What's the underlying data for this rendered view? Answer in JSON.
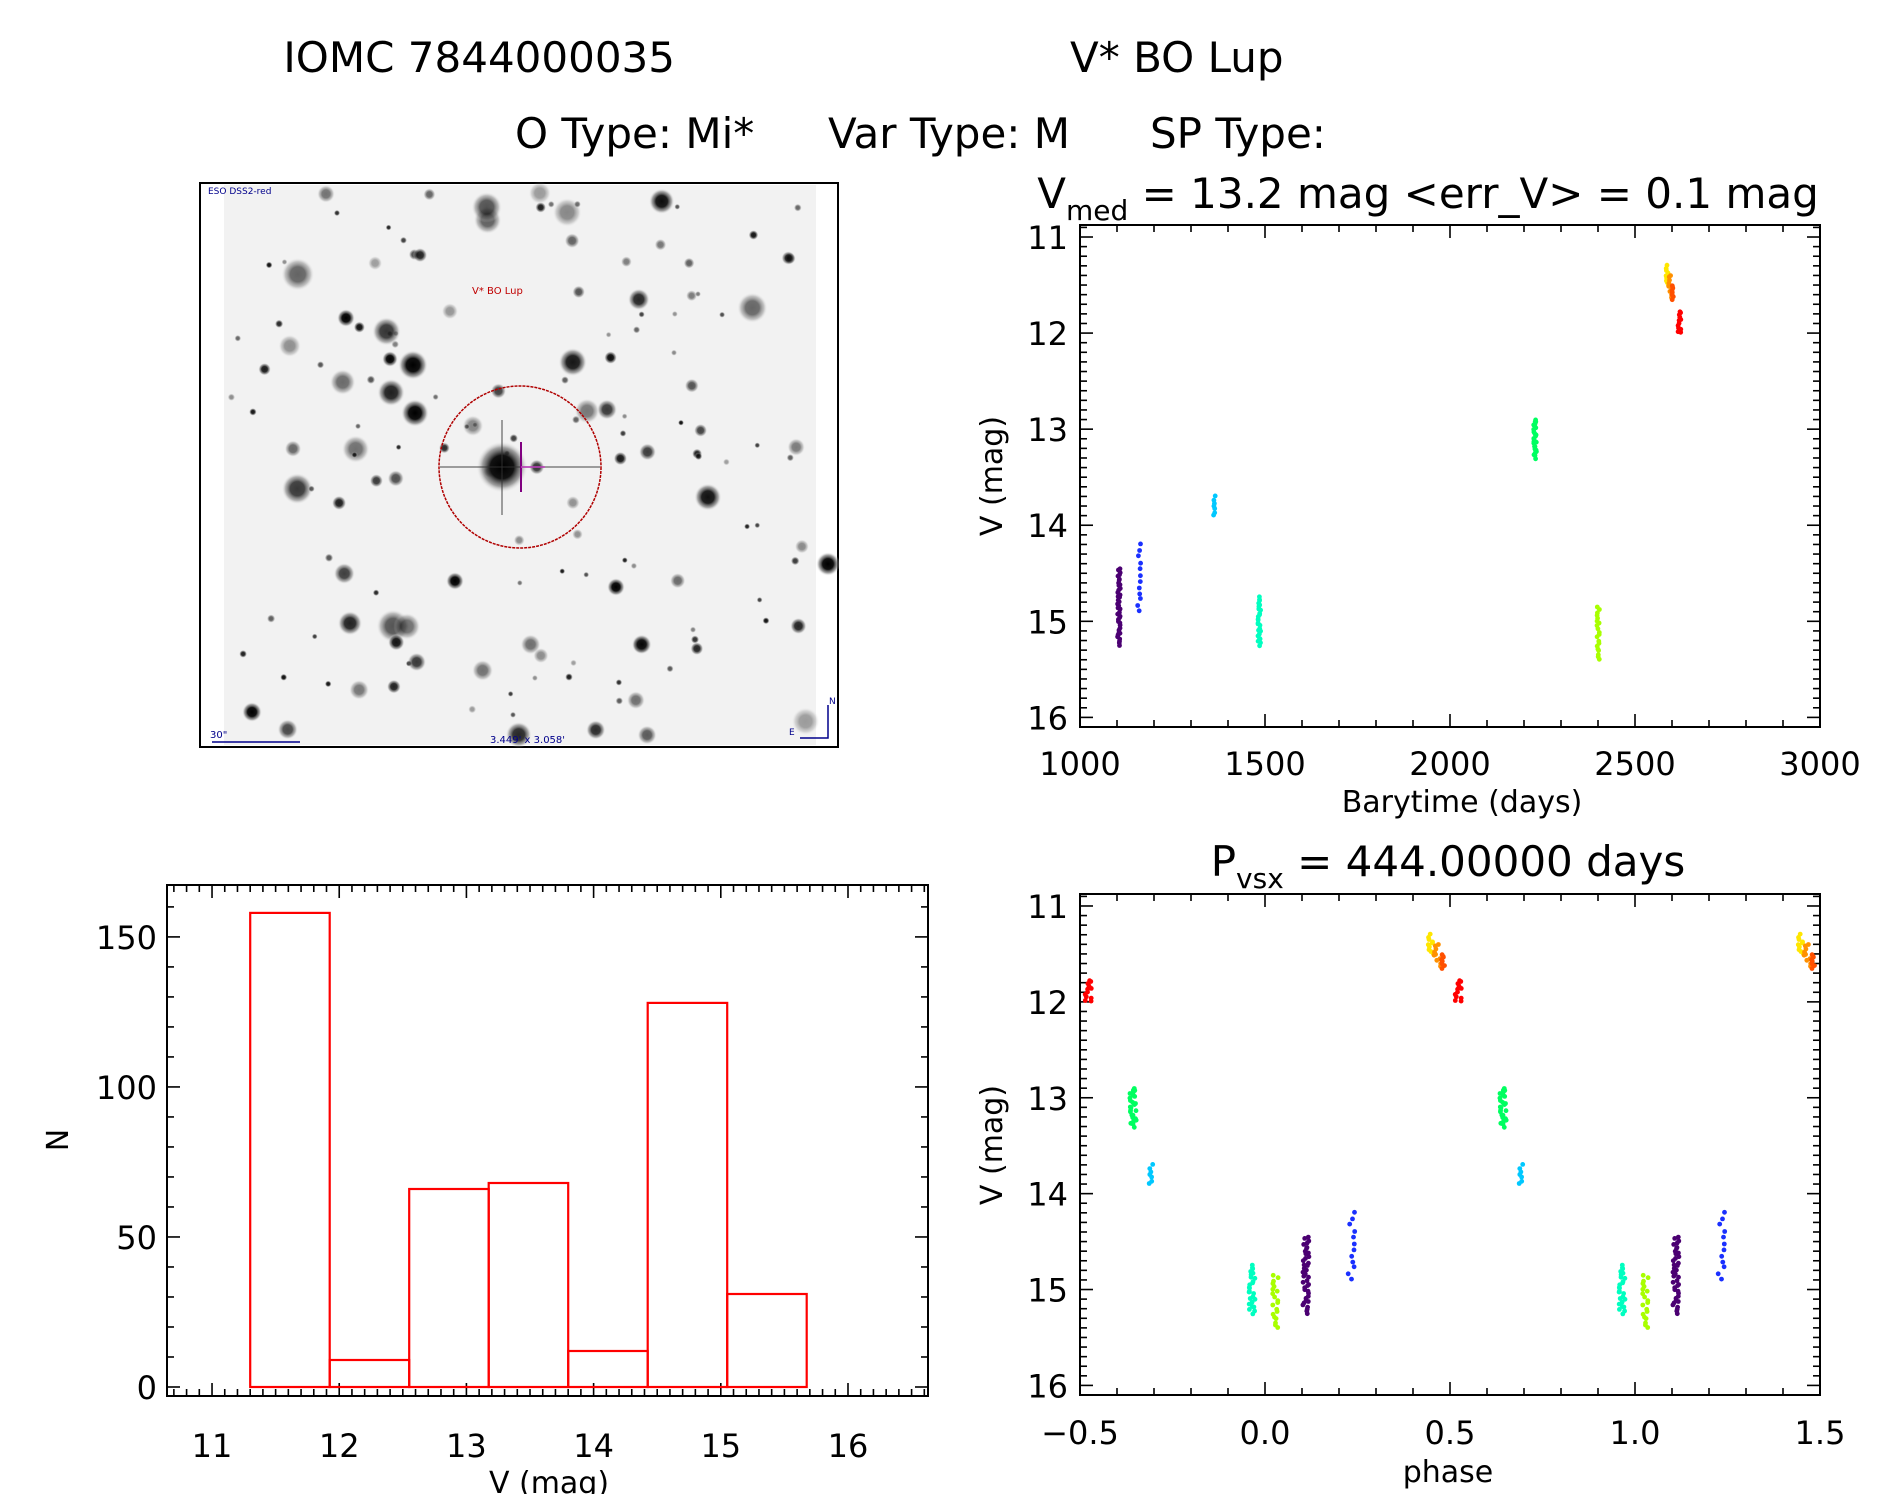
{
  "header": {
    "title_id": "IOMC 7844000035",
    "title_name": "V* BO Lup",
    "otype": "O Type: Mi*",
    "vartype": "Var Type: M",
    "sptype": "SP Type:"
  },
  "finder": {
    "survey": "ESO DSS2-red",
    "target": "V* BO Lup",
    "scale": "30\"",
    "fov": "3.449' x 3.058'",
    "north": "N",
    "east": "E"
  },
  "colors": {
    "hist": "#ff0000",
    "frame": "#000000",
    "circle": "#b00000",
    "label": "#00008b"
  },
  "chart_data": [
    {
      "type": "scatter",
      "id": "lightcurve",
      "title_main": "V",
      "title_sub": "med",
      "title_rest": " = 13.2 mag <err_V> = 0.1 mag",
      "xlabel": "Barytime (days)",
      "ylabel": "V (mag)",
      "xlim": [
        1000,
        3000
      ],
      "ylim": [
        16.1,
        10.875
      ],
      "xticks": [
        "1000",
        "1500",
        "2000",
        "2500",
        "3000"
      ],
      "yticks": [
        "11",
        "12",
        "13",
        "14",
        "15",
        "16"
      ],
      "clusters": [
        {
          "t": 1105,
          "vmin": 14.45,
          "vmax": 15.25,
          "n": 40,
          "color": "#4b0072"
        },
        {
          "t": 1160,
          "vmin": 14.2,
          "vmax": 14.9,
          "n": 12,
          "color": "#1a30ff"
        },
        {
          "t": 1365,
          "vmin": 13.7,
          "vmax": 13.9,
          "n": 7,
          "color": "#00c8ff"
        },
        {
          "t": 1485,
          "vmin": 14.75,
          "vmax": 15.25,
          "n": 26,
          "color": "#00ffc0"
        },
        {
          "t": 2230,
          "vmin": 12.9,
          "vmax": 13.3,
          "n": 26,
          "color": "#00ff60"
        },
        {
          "t": 2400,
          "vmin": 14.85,
          "vmax": 15.4,
          "n": 20,
          "color": "#a8ff00"
        },
        {
          "t": 2588,
          "vmin": 11.3,
          "vmax": 11.5,
          "n": 10,
          "color": "#ffe600"
        },
        {
          "t": 2595,
          "vmin": 11.4,
          "vmax": 11.62,
          "n": 10,
          "color": "#ff9000"
        },
        {
          "t": 2600,
          "vmin": 11.5,
          "vmax": 11.65,
          "n": 8,
          "color": "#ff5000"
        },
        {
          "t": 2620,
          "vmin": 11.77,
          "vmax": 12.0,
          "n": 12,
          "color": "#ff0000"
        }
      ]
    },
    {
      "type": "scatter",
      "id": "phased",
      "title_main": "P",
      "title_sub": "vsx",
      "title_rest": " = 444.00000 days",
      "period": 444.0,
      "xlabel": "phase",
      "ylabel": "V (mag)",
      "xlim": [
        -0.5,
        1.5
      ],
      "ylim": [
        16.1,
        10.875
      ],
      "xticks": [
        "−0.5",
        "0.0",
        "0.5",
        "1.0",
        "1.5"
      ],
      "yticks": [
        "11",
        "12",
        "13",
        "14",
        "15",
        "16"
      ]
    },
    {
      "type": "bar",
      "id": "histogram",
      "xlabel": "V (mag)",
      "ylabel": "N",
      "xlim": [
        10.646,
        16.629
      ],
      "ylim": [
        -3,
        167.3
      ],
      "xticks": [
        "11",
        "12",
        "13",
        "14",
        "15",
        "16"
      ],
      "yticks": [
        "0",
        "50",
        "100",
        "150"
      ],
      "bin_edges": [
        11.3,
        11.925,
        12.55,
        13.175,
        13.8,
        14.425,
        15.05,
        15.675
      ],
      "counts": [
        158,
        9,
        66,
        68,
        12,
        128,
        31
      ]
    }
  ]
}
